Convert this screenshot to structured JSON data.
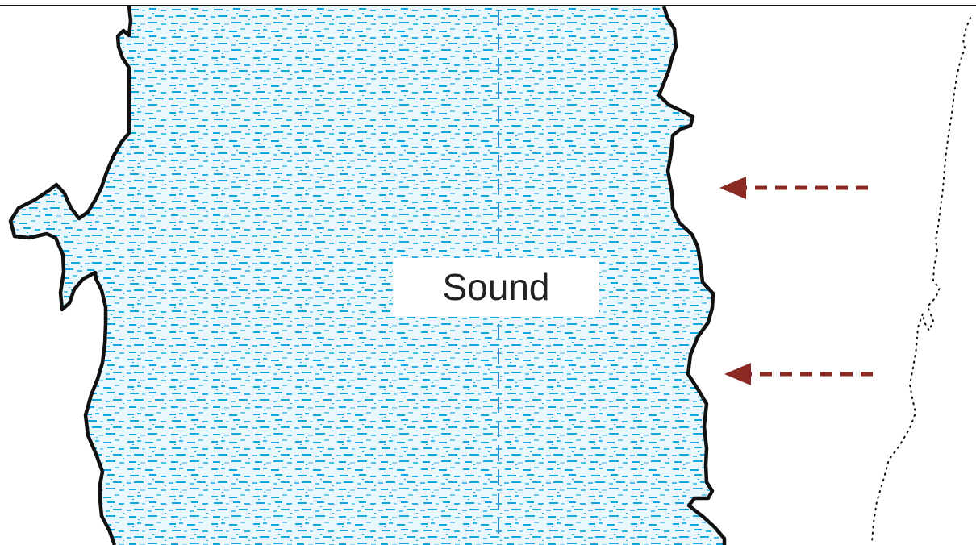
{
  "map": {
    "water_label": "Sound"
  },
  "colors": {
    "water": "#1fa8dd",
    "water_speckle": "#10a6de",
    "centerline": "#2a87c6",
    "shoreline": "#111111",
    "arrow": "#8b2a22",
    "background": "#ffffff"
  },
  "legend": {
    "arrow_meaning_shown": false
  }
}
